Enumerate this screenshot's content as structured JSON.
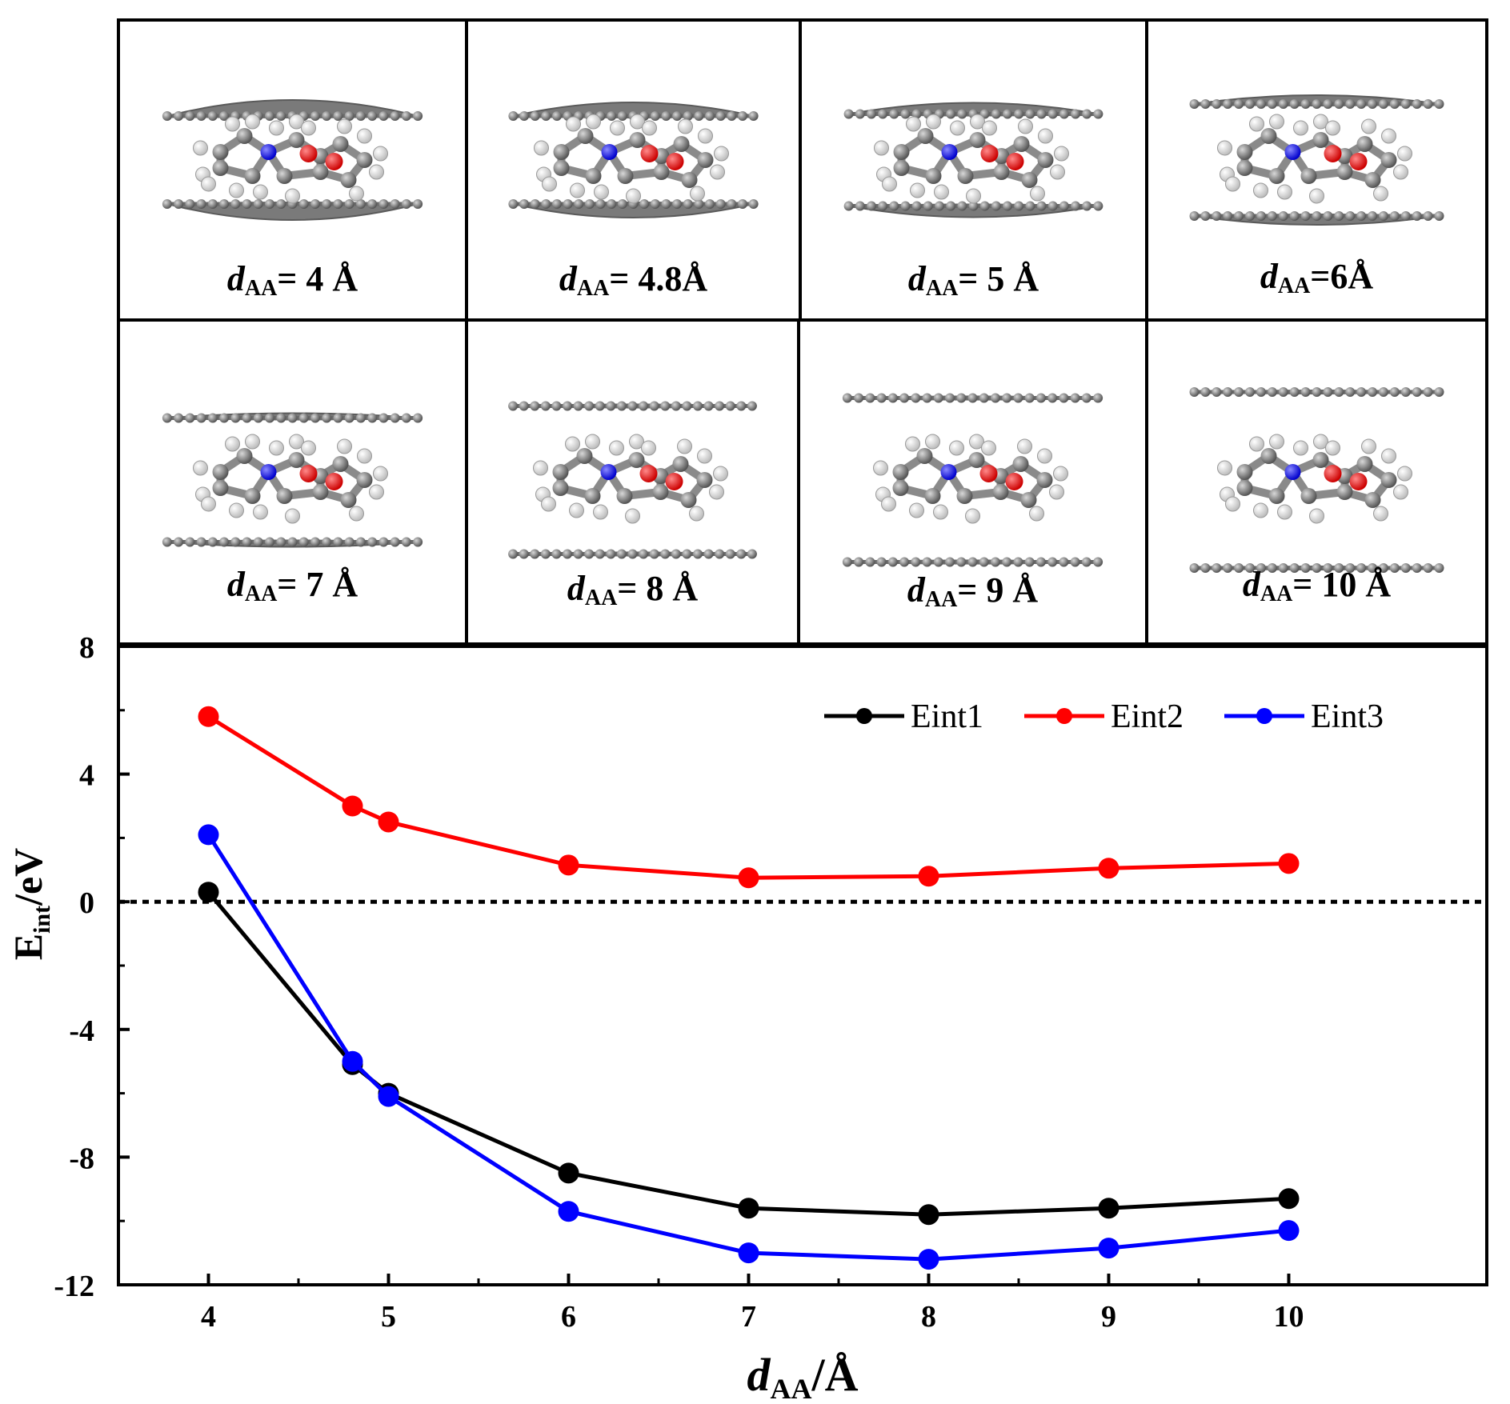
{
  "panels": [
    {
      "label_var": "d",
      "label_sub": "AA",
      "label_value": "= 4 Å"
    },
    {
      "label_var": "d",
      "label_sub": "AA",
      "label_value": "= 4.8Å"
    },
    {
      "label_var": "d",
      "label_sub": "AA",
      "label_value": "= 5 Å"
    },
    {
      "label_var": "d",
      "label_sub": "AA",
      "label_value": "=6Å"
    },
    {
      "label_var": "d",
      "label_sub": "AA",
      "label_value": "= 7 Å"
    },
    {
      "label_var": "d",
      "label_sub": "AA",
      "label_value": "= 8 Å"
    },
    {
      "label_var": "d",
      "label_sub": "AA",
      "label_value": "= 9 Å"
    },
    {
      "label_var": "d",
      "label_sub": "AA",
      "label_value": "= 10 Å"
    }
  ],
  "chart_data": {
    "type": "line",
    "title": "",
    "xlabel_var": "d",
    "xlabel_sub": "AA",
    "xlabel_unit": "/Å",
    "ylabel_main": "E",
    "ylabel_sub": "int",
    "ylabel_unit": "/eV",
    "xlim": [
      3.5,
      11.1
    ],
    "ylim": [
      -12,
      8
    ],
    "xticks": [
      4,
      5,
      6,
      7,
      8,
      9,
      10
    ],
    "xtick_labels": [
      "4",
      "5",
      "6",
      "7",
      "8",
      "9",
      "10"
    ],
    "yticks": [
      -12,
      -8,
      -4,
      0,
      4,
      8
    ],
    "ytick_labels": [
      "-12",
      "-8",
      "-4",
      "0",
      "4",
      "8"
    ],
    "reference_line": {
      "y": 0,
      "style": "dotted",
      "color": "#000000"
    },
    "legend_position": "top-right",
    "series": [
      {
        "name": "Eint1",
        "color": "#000000",
        "x": [
          4,
          4.8,
          5,
          6,
          7,
          8,
          9,
          10
        ],
        "y": [
          0.3,
          -5.1,
          -6.0,
          -8.5,
          -9.6,
          -9.8,
          -9.6,
          -9.3
        ]
      },
      {
        "name": "Eint2",
        "color": "#ff0000",
        "x": [
          4,
          4.8,
          5,
          6,
          7,
          8,
          9,
          10
        ],
        "y": [
          5.8,
          3.0,
          2.5,
          1.15,
          0.75,
          0.8,
          1.05,
          1.2
        ]
      },
      {
        "name": "Eint3",
        "color": "#0000ff",
        "x": [
          4,
          4.8,
          5,
          6,
          7,
          8,
          9,
          10
        ],
        "y": [
          2.1,
          -5.0,
          -6.1,
          -9.7,
          -11.0,
          -11.2,
          -10.85,
          -10.3
        ]
      }
    ]
  }
}
